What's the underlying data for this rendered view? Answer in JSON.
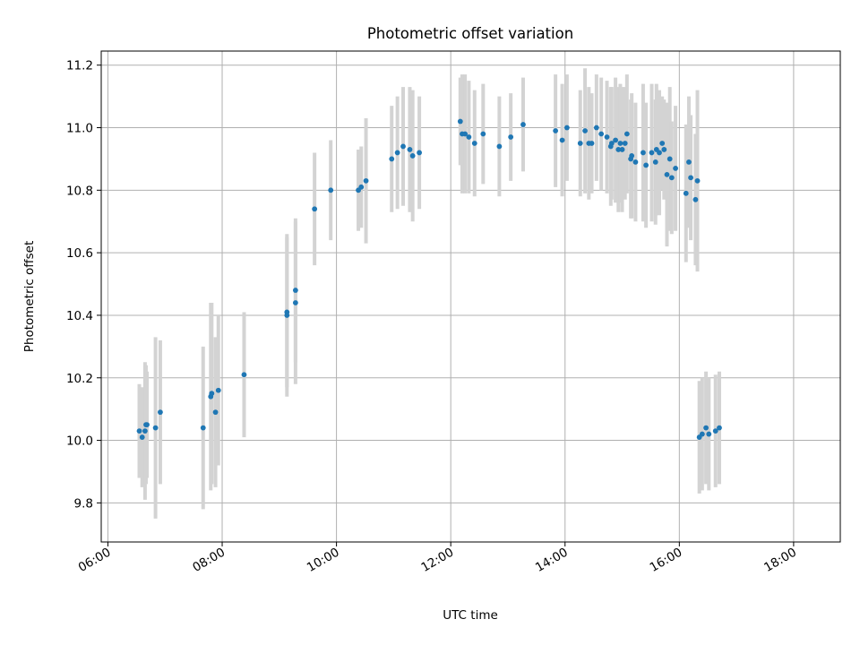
{
  "chart_data": {
    "type": "scatter",
    "title": "Photometric offset variation",
    "xlabel": "UTC time",
    "ylabel": "Photometric offset",
    "xlim": [
      "05:53",
      "18:49"
    ],
    "ylim": [
      9.675,
      11.245
    ],
    "x_ticks": [
      "06:00",
      "08:00",
      "10:00",
      "12:00",
      "14:00",
      "16:00",
      "18:00"
    ],
    "y_ticks": [
      "9.8",
      "10.0",
      "10.2",
      "10.4",
      "10.6",
      "10.8",
      "11.0",
      "11.2"
    ],
    "grid": true,
    "legend": "none",
    "colors": {
      "point": "#1f77b4",
      "errorbar": "#d3d3d3",
      "grid": "#b0b0b0"
    },
    "series": [
      {
        "x": [
          "06:33",
          "06:36",
          "06:39",
          "06:40",
          "06:41",
          "06:50",
          "06:55",
          "07:40",
          "07:48",
          "07:49",
          "07:53",
          "07:56",
          "08:23",
          "09:08",
          "09:08",
          "09:17",
          "09:17",
          "09:37",
          "09:54",
          "10:23",
          "10:26",
          "10:31",
          "10:58",
          "11:04",
          "11:10",
          "11:17",
          "11:20",
          "11:27",
          "12:10",
          "12:12",
          "12:15",
          "12:19",
          "12:25",
          "12:34",
          "12:51",
          "13:03",
          "13:16",
          "13:50",
          "13:57",
          "14:02",
          "14:16",
          "14:21",
          "14:25",
          "14:28",
          "14:33",
          "14:38",
          "14:44",
          "14:48",
          "14:49",
          "14:53",
          "14:56",
          "14:58",
          "15:00",
          "15:03",
          "15:05",
          "15:09",
          "15:10",
          "15:14",
          "15:22",
          "15:25",
          "15:31",
          "15:35",
          "15:36",
          "15:39",
          "15:42",
          "15:44",
          "15:47",
          "15:50",
          "15:52",
          "15:56",
          "16:07",
          "16:10",
          "16:12",
          "16:17",
          "16:19",
          "16:21",
          "16:24",
          "16:28",
          "16:31",
          "16:38",
          "16:42"
        ],
        "y": [
          10.03,
          10.01,
          10.03,
          10.05,
          10.05,
          10.04,
          10.09,
          10.04,
          10.14,
          10.15,
          10.09,
          10.16,
          10.21,
          10.41,
          10.4,
          10.44,
          10.48,
          10.74,
          10.8,
          10.8,
          10.81,
          10.83,
          10.9,
          10.92,
          10.94,
          10.93,
          10.91,
          10.92,
          11.02,
          10.98,
          10.98,
          10.97,
          10.95,
          10.98,
          10.94,
          10.97,
          11.01,
          10.99,
          10.96,
          11.0,
          10.95,
          10.99,
          10.95,
          10.95,
          11.0,
          10.98,
          10.97,
          10.94,
          10.95,
          10.96,
          10.93,
          10.95,
          10.93,
          10.95,
          10.98,
          10.9,
          10.91,
          10.89,
          10.92,
          10.88,
          10.92,
          10.89,
          10.93,
          10.92,
          10.95,
          10.93,
          10.85,
          10.9,
          10.84,
          10.87,
          10.79,
          10.89,
          10.84,
          10.77,
          10.83,
          10.01,
          10.02,
          10.04,
          10.02,
          10.03,
          10.04
        ],
        "err": [
          0.15,
          0.16,
          0.22,
          0.19,
          0.17,
          0.29,
          0.23,
          0.26,
          0.3,
          0.29,
          0.24,
          0.24,
          0.2,
          0.24,
          0.26,
          0.26,
          0.23,
          0.18,
          0.16,
          0.13,
          0.13,
          0.2,
          0.17,
          0.18,
          0.19,
          0.2,
          0.21,
          0.18,
          0.14,
          0.19,
          0.19,
          0.18,
          0.17,
          0.16,
          0.16,
          0.14,
          0.15,
          0.18,
          0.18,
          0.17,
          0.17,
          0.2,
          0.18,
          0.16,
          0.17,
          0.18,
          0.18,
          0.19,
          0.18,
          0.2,
          0.2,
          0.19,
          0.2,
          0.18,
          0.19,
          0.19,
          0.2,
          0.19,
          0.22,
          0.2,
          0.22,
          0.2,
          0.21,
          0.2,
          0.15,
          0.16,
          0.23,
          0.23,
          0.18,
          0.2,
          0.22,
          0.21,
          0.2,
          0.21,
          0.29,
          0.18,
          0.18,
          0.18,
          0.18,
          0.18,
          0.18
        ]
      }
    ]
  }
}
